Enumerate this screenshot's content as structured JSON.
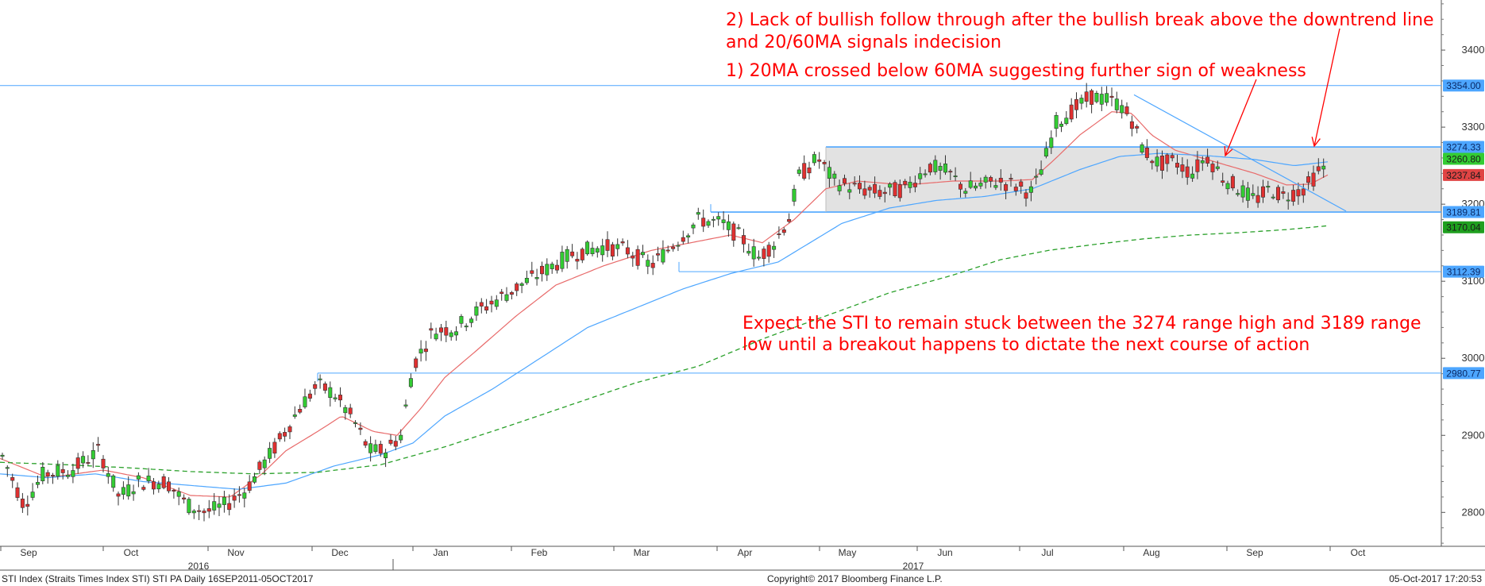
{
  "chart_data": {
    "type": "candlestick",
    "y_axis": {
      "ticks": [
        2800,
        2900,
        3000,
        3100,
        3200,
        3300,
        3400
      ],
      "range": [
        2756,
        3465
      ],
      "position": "right"
    },
    "x_axis": {
      "month_labels": [
        "Sep",
        "Oct",
        "Nov",
        "Dec",
        "Jan",
        "Feb",
        "Mar",
        "Apr",
        "May",
        "Jun",
        "Jul",
        "Aug",
        "Sep",
        "Oct"
      ],
      "year_labels": [
        "2016",
        "2017"
      ]
    },
    "price_labels": [
      {
        "value": 3354.0,
        "text": "3354.00",
        "color": "#4da6ff"
      },
      {
        "value": 3274.33,
        "text": "3274.33",
        "color": "#4da6ff"
      },
      {
        "value": 3260.8,
        "text": "3260.80",
        "color": "#33cc33"
      },
      {
        "value": 3237.84,
        "text": "3237.84",
        "color": "#e04444"
      },
      {
        "value": 3189.81,
        "text": "3189.81",
        "color": "#4da6ff"
      },
      {
        "value": 3170.04,
        "text": "3170.04",
        "color": "#1f9f1f"
      },
      {
        "value": 3112.39,
        "text": "3112.39",
        "color": "#4da6ff"
      },
      {
        "value": 2980.77,
        "text": "2980.77",
        "color": "#4da6ff"
      }
    ],
    "range_box": {
      "high": 3274.33,
      "low": 3189.81
    },
    "series": [
      {
        "name": "20MA",
        "color": "#e86a6a"
      },
      {
        "name": "60MA",
        "color": "#4da6ff"
      },
      {
        "name": "200MA",
        "color": "#2aa02a"
      }
    ],
    "annotations": [
      "2) Lack of bullish follow through after the bullish break above the downtrend line",
      "and 20/60MA signals indecision",
      "1) 20MA crossed below 60MA suggesting further sign of weakness",
      "Expect the STI to remain stuck between the 3274 range high and 3189 range",
      "low until a breakout happens to dictate the next course of action"
    ],
    "footer": {
      "left": "STI Index (Straits Times Index STI) STI PA  Daily 16SEP2011-05OCT2017",
      "center": "Copyright© 2017 Bloomberg Finance L.P.",
      "right": "05-Oct-2017 17:20:53"
    },
    "colors": {
      "up": "#33cc33",
      "down": "#e03030",
      "annotation": "#ff0000",
      "level_line": "#4da6ff"
    }
  }
}
